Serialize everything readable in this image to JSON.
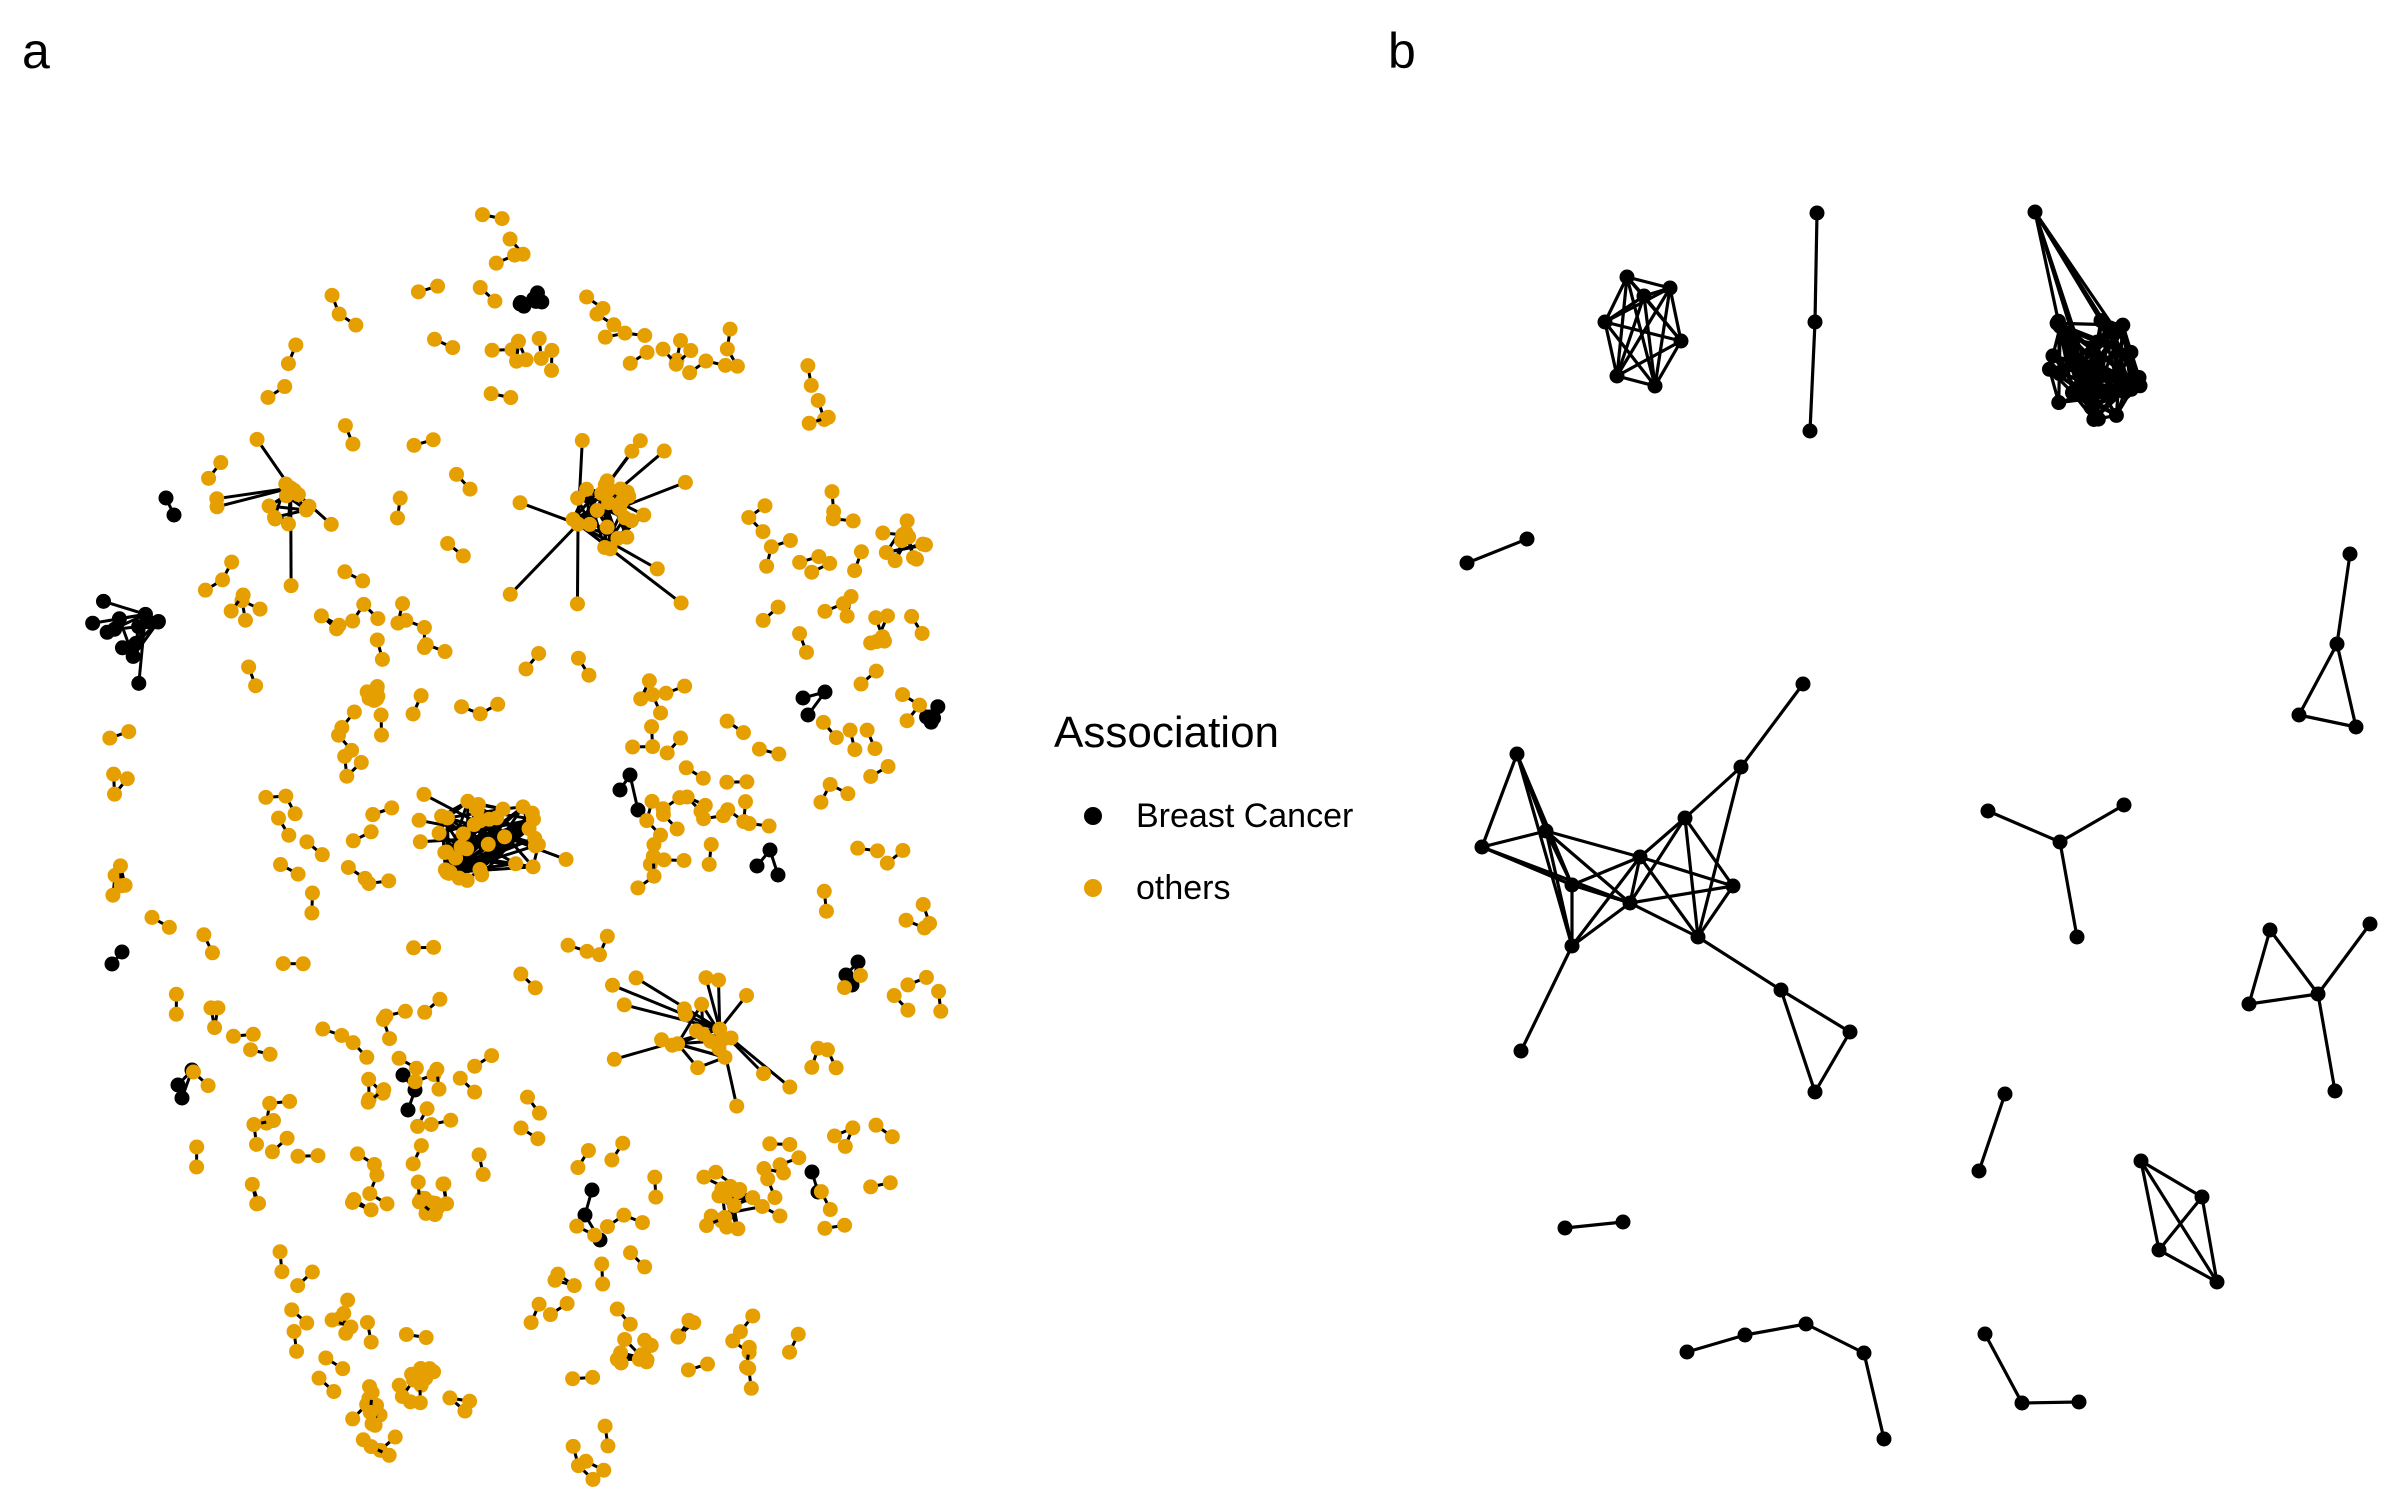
{
  "panels": {
    "a": {
      "label": "a"
    },
    "b": {
      "label": "b"
    }
  },
  "legend": {
    "title": "Association",
    "items": [
      {
        "label": "Breast Cancer",
        "color": "#000000"
      },
      {
        "label": "others",
        "color": "#E69F00"
      }
    ]
  },
  "colors": {
    "breast_cancer": "#000000",
    "others": "#E69F00",
    "edge": "#000000"
  }
}
